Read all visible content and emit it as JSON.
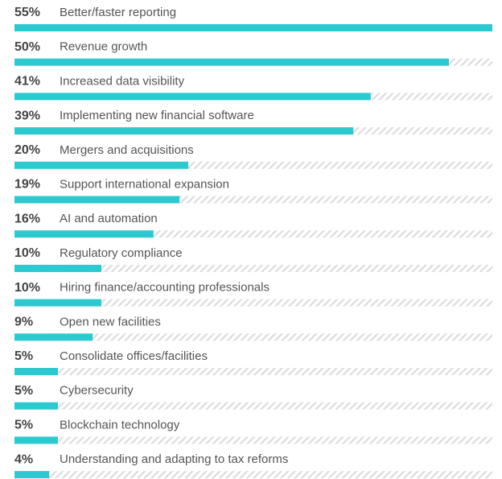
{
  "chart_data": {
    "type": "bar",
    "orientation": "horizontal",
    "categories": [
      "Better/faster reporting",
      "Revenue growth",
      "Increased data visibility",
      "Implementing new financial software",
      "Mergers and acquisitions",
      "Support international expansion",
      "AI and automation",
      "Regulatory compliance",
      "Hiring finance/accounting professionals",
      "Open new facilities",
      "Consolidate offices/facilities",
      "Cybersecurity",
      "Blockchain technology",
      "Understanding and adapting to tax reforms"
    ],
    "values": [
      55,
      50,
      41,
      39,
      20,
      19,
      16,
      10,
      10,
      9,
      5,
      5,
      5,
      4
    ],
    "value_labels": [
      "55%",
      "50%",
      "41%",
      "39%",
      "20%",
      "19%",
      "16%",
      "10%",
      "10%",
      "9%",
      "5%",
      "5%",
      "5%",
      "4%"
    ],
    "color": "#2ccad0",
    "xlim": [
      0,
      55
    ]
  }
}
